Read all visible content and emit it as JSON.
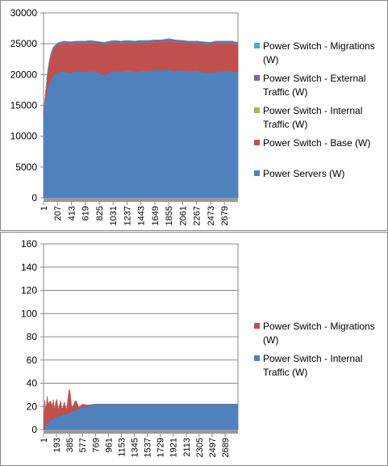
{
  "chart_data": [
    {
      "type": "area",
      "stacked": true,
      "grid": "horizontal",
      "legend_position": "right",
      "ylim": [
        0,
        30000
      ],
      "yticks": [
        0,
        5000,
        10000,
        15000,
        20000,
        25000,
        30000
      ],
      "xticks": [
        "1",
        "207",
        "413",
        "619",
        "825",
        "1031",
        "1237",
        "1443",
        "1649",
        "1855",
        "2061",
        "2267",
        "2473",
        "2679"
      ],
      "x_range": [
        1,
        2880
      ],
      "series": [
        {
          "name": "Power Servers (W)",
          "color": "#4F81BD",
          "points": [
            [
              1,
              13500
            ],
            [
              30,
              15500
            ],
            [
              60,
              17600
            ],
            [
              100,
              19000
            ],
            [
              140,
              19800
            ],
            [
              207,
              20300
            ],
            [
              300,
              20500
            ],
            [
              400,
              20300
            ],
            [
              500,
              20500
            ],
            [
              619,
              20400
            ],
            [
              700,
              20600
            ],
            [
              825,
              20300
            ],
            [
              900,
              19900
            ],
            [
              1031,
              20600
            ],
            [
              1150,
              20400
            ],
            [
              1237,
              20700
            ],
            [
              1350,
              20400
            ],
            [
              1443,
              20600
            ],
            [
              1550,
              20500
            ],
            [
              1649,
              20800
            ],
            [
              1750,
              20700
            ],
            [
              1855,
              20800
            ],
            [
              1950,
              20600
            ],
            [
              2061,
              20700
            ],
            [
              2150,
              20500
            ],
            [
              2267,
              20700
            ],
            [
              2350,
              20400
            ],
            [
              2473,
              20300
            ],
            [
              2550,
              20400
            ],
            [
              2679,
              20600
            ],
            [
              2780,
              20500
            ],
            [
              2880,
              20400
            ]
          ]
        },
        {
          "name": "Power Switch - Base (W)",
          "color": "#C0504D",
          "points": [
            [
              1,
              500
            ],
            [
              30,
              1500
            ],
            [
              60,
              2800
            ],
            [
              100,
              3800
            ],
            [
              140,
              4300
            ],
            [
              207,
              4500
            ],
            [
              300,
              4600
            ],
            [
              400,
              4700
            ],
            [
              500,
              4600
            ],
            [
              619,
              4700
            ],
            [
              700,
              4600
            ],
            [
              825,
              4700
            ],
            [
              900,
              5000
            ],
            [
              1031,
              4600
            ],
            [
              1150,
              4700
            ],
            [
              1237,
              4500
            ],
            [
              1350,
              4700
            ],
            [
              1443,
              4600
            ],
            [
              1550,
              4700
            ],
            [
              1649,
              4500
            ],
            [
              1750,
              4600
            ],
            [
              1855,
              4700
            ],
            [
              1950,
              4700
            ],
            [
              2061,
              4500
            ],
            [
              2150,
              4600
            ],
            [
              2267,
              4400
            ],
            [
              2350,
              4600
            ],
            [
              2473,
              4600
            ],
            [
              2550,
              4700
            ],
            [
              2679,
              4500
            ],
            [
              2780,
              4600
            ],
            [
              2880,
              4500
            ]
          ]
        },
        {
          "name": "Power Switch - Internal Traffic (W)",
          "color": "#9BBB59",
          "points": [
            [
              1,
              0
            ],
            [
              30,
              5
            ],
            [
              60,
              10
            ],
            [
              100,
              15
            ],
            [
              207,
              20
            ],
            [
              500,
              22
            ],
            [
              1000,
              22
            ],
            [
              1500,
              22
            ],
            [
              2000,
              22
            ],
            [
              2500,
              22
            ],
            [
              2880,
              22
            ]
          ]
        },
        {
          "name": "Power Switch - External Traffic (W)",
          "color": "#8064A2",
          "points": [
            [
              1,
              0
            ],
            [
              30,
              100
            ],
            [
              60,
              200
            ],
            [
              100,
              250
            ],
            [
              207,
              300
            ],
            [
              500,
              300
            ],
            [
              1000,
              300
            ],
            [
              1500,
              300
            ],
            [
              2000,
              300
            ],
            [
              2500,
              300
            ],
            [
              2880,
              300
            ]
          ]
        },
        {
          "name": "Power Switch - Migrations (W)",
          "color": "#4BACC6",
          "points": [
            [
              1,
              0
            ],
            [
              30,
              10
            ],
            [
              60,
              15
            ],
            [
              100,
              20
            ],
            [
              207,
              20
            ],
            [
              500,
              20
            ],
            [
              1000,
              20
            ],
            [
              1500,
              20
            ],
            [
              2000,
              20
            ],
            [
              2500,
              20
            ],
            [
              2880,
              20
            ]
          ]
        }
      ]
    },
    {
      "type": "area",
      "stacked": true,
      "grid": "horizontal",
      "legend_position": "right",
      "ylim": [
        0,
        160
      ],
      "yticks": [
        0,
        20,
        40,
        60,
        80,
        100,
        120,
        140,
        160
      ],
      "xticks": [
        "1",
        "193",
        "385",
        "577",
        "769",
        "961",
        "1153",
        "1345",
        "1537",
        "1729",
        "1921",
        "2113",
        "2305",
        "2497",
        "2689"
      ],
      "x_range": [
        1,
        2880
      ],
      "series": [
        {
          "name": "Power Switch - Internal Traffic (W)",
          "color": "#4F81BD",
          "points": [
            [
              1,
              0
            ],
            [
              30,
              3
            ],
            [
              60,
              6
            ],
            [
              100,
              8
            ],
            [
              150,
              10
            ],
            [
              193,
              11
            ],
            [
              250,
              12
            ],
            [
              300,
              13
            ],
            [
              385,
              14
            ],
            [
              420,
              16
            ],
            [
              480,
              17
            ],
            [
              577,
              19
            ],
            [
              640,
              20
            ],
            [
              700,
              21
            ],
            [
              769,
              22
            ],
            [
              900,
              22
            ],
            [
              1200,
              22
            ],
            [
              1500,
              22
            ],
            [
              1800,
              22
            ],
            [
              2100,
              22
            ],
            [
              2400,
              22
            ],
            [
              2700,
              22
            ],
            [
              2880,
              22
            ]
          ]
        },
        {
          "name": "Power Switch - Migrations (W)",
          "color": "#C0504D",
          "points": [
            [
              1,
              0
            ],
            [
              20,
              25
            ],
            [
              40,
              10
            ],
            [
              60,
              28
            ],
            [
              80,
              8
            ],
            [
              100,
              24
            ],
            [
              120,
              6
            ],
            [
              140,
              20
            ],
            [
              160,
              5
            ],
            [
              193,
              18
            ],
            [
              220,
              4
            ],
            [
              250,
              14
            ],
            [
              280,
              3
            ],
            [
              310,
              12
            ],
            [
              340,
              2
            ],
            [
              385,
              24
            ],
            [
              420,
              2
            ],
            [
              480,
              9
            ],
            [
              520,
              1
            ],
            [
              577,
              3
            ],
            [
              650,
              1
            ],
            [
              769,
              0
            ],
            [
              2880,
              0
            ]
          ]
        }
      ]
    }
  ]
}
